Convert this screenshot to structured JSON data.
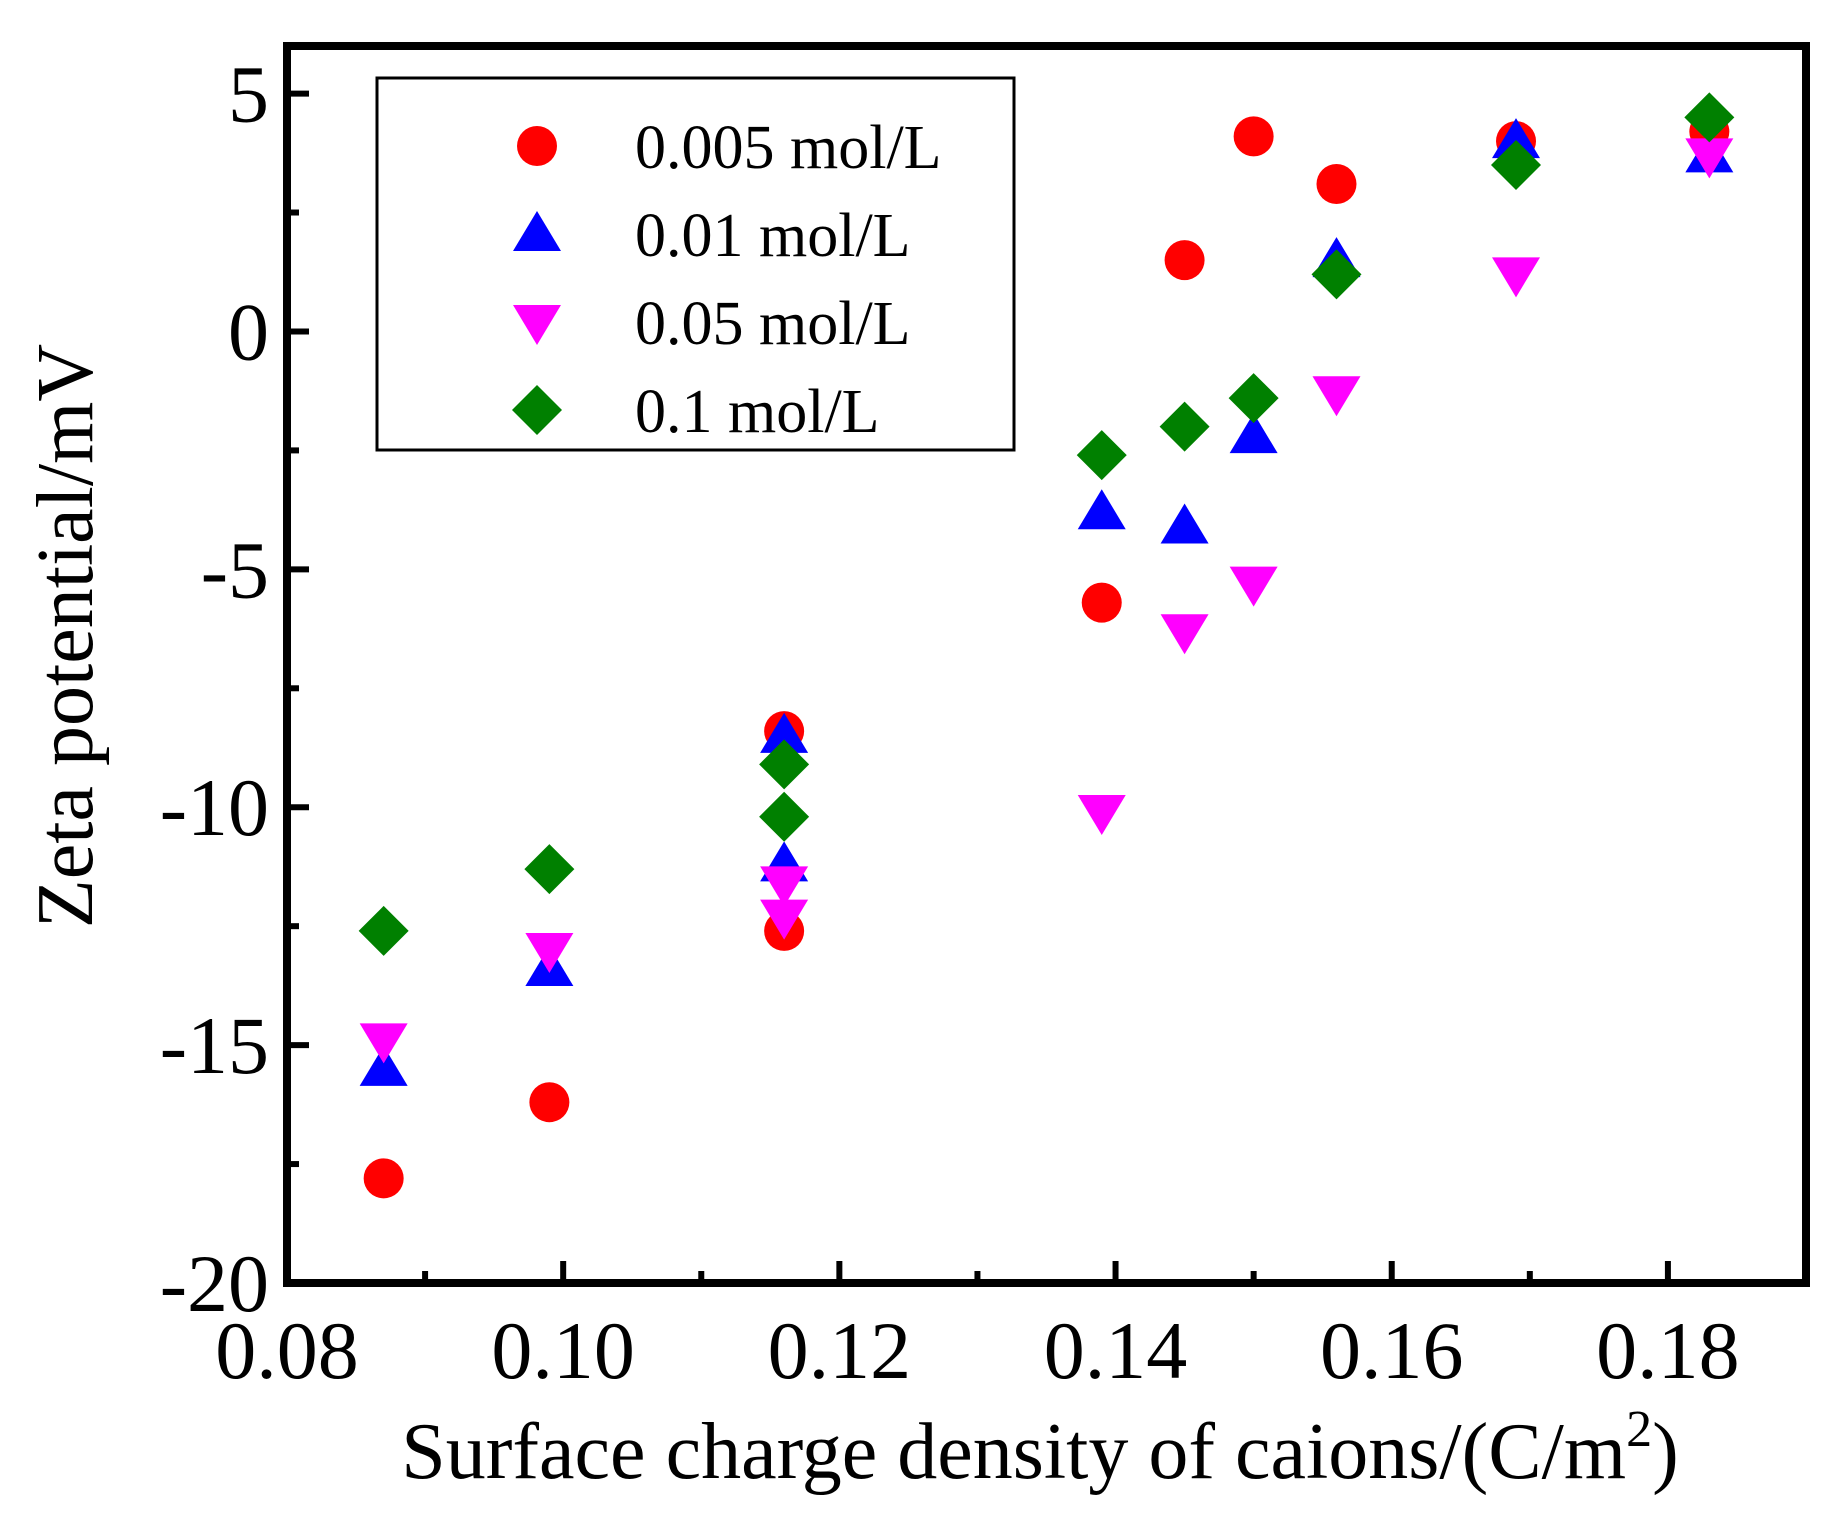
{
  "chart_data": {
    "type": "scatter",
    "xlabel": "Surface charge density of caions/(C/m",
    "xlabel_sup": "2",
    "xlabel_end": ")",
    "ylabel": "Zeta potential/mV",
    "xlim": [
      0.08,
      0.19
    ],
    "ylim": [
      -20,
      6
    ],
    "xticks": [
      0.08,
      0.1,
      0.12,
      0.14,
      0.16,
      0.18
    ],
    "xtick_labels": [
      "0.08",
      "0.10",
      "0.12",
      "0.14",
      "0.16",
      "0.18"
    ],
    "yticks": [
      -20,
      -15,
      -10,
      -5,
      0,
      5
    ],
    "ytick_labels": [
      "-20",
      "-15",
      "-10",
      "-5",
      "0",
      "5"
    ],
    "grid": false,
    "legend_position": "top-left",
    "series": [
      {
        "name": "0.005 mol/L",
        "marker": "circle",
        "color": "#ff0000",
        "points": [
          [
            0.087,
            -17.8
          ],
          [
            0.099,
            -16.2
          ],
          [
            0.116,
            -8.4
          ],
          [
            0.116,
            -12.6
          ],
          [
            0.139,
            -5.7
          ],
          [
            0.145,
            1.5
          ],
          [
            0.15,
            4.1
          ],
          [
            0.156,
            3.1
          ],
          [
            0.169,
            4.0
          ],
          [
            0.183,
            4.2
          ]
        ]
      },
      {
        "name": "0.01 mol/L",
        "marker": "triangle-up",
        "color": "#0000ff",
        "points": [
          [
            0.087,
            -15.5
          ],
          [
            0.099,
            -13.4
          ],
          [
            0.116,
            -8.5
          ],
          [
            0.116,
            -11.2
          ],
          [
            0.139,
            -3.8
          ],
          [
            0.145,
            -4.1
          ],
          [
            0.15,
            -2.2
          ],
          [
            0.156,
            1.5
          ],
          [
            0.169,
            4.0
          ],
          [
            0.183,
            3.7
          ]
        ]
      },
      {
        "name": "0.05 mol/L",
        "marker": "triangle-down",
        "color": "#ff00ff",
        "points": [
          [
            0.087,
            -14.9
          ],
          [
            0.099,
            -13.0
          ],
          [
            0.116,
            -11.6
          ],
          [
            0.116,
            -12.3
          ],
          [
            0.139,
            -10.1
          ],
          [
            0.145,
            -6.3
          ],
          [
            0.15,
            -5.3
          ],
          [
            0.156,
            -1.3
          ],
          [
            0.169,
            1.2
          ],
          [
            0.183,
            3.7
          ]
        ]
      },
      {
        "name": "0.1 mol/L",
        "marker": "diamond",
        "color": "#008000",
        "points": [
          [
            0.087,
            -12.6
          ],
          [
            0.099,
            -11.3
          ],
          [
            0.116,
            -9.1
          ],
          [
            0.116,
            -10.2
          ],
          [
            0.139,
            -2.6
          ],
          [
            0.145,
            -2.0
          ],
          [
            0.15,
            -1.4
          ],
          [
            0.156,
            1.2
          ],
          [
            0.169,
            3.5
          ],
          [
            0.183,
            4.5
          ]
        ]
      }
    ]
  }
}
